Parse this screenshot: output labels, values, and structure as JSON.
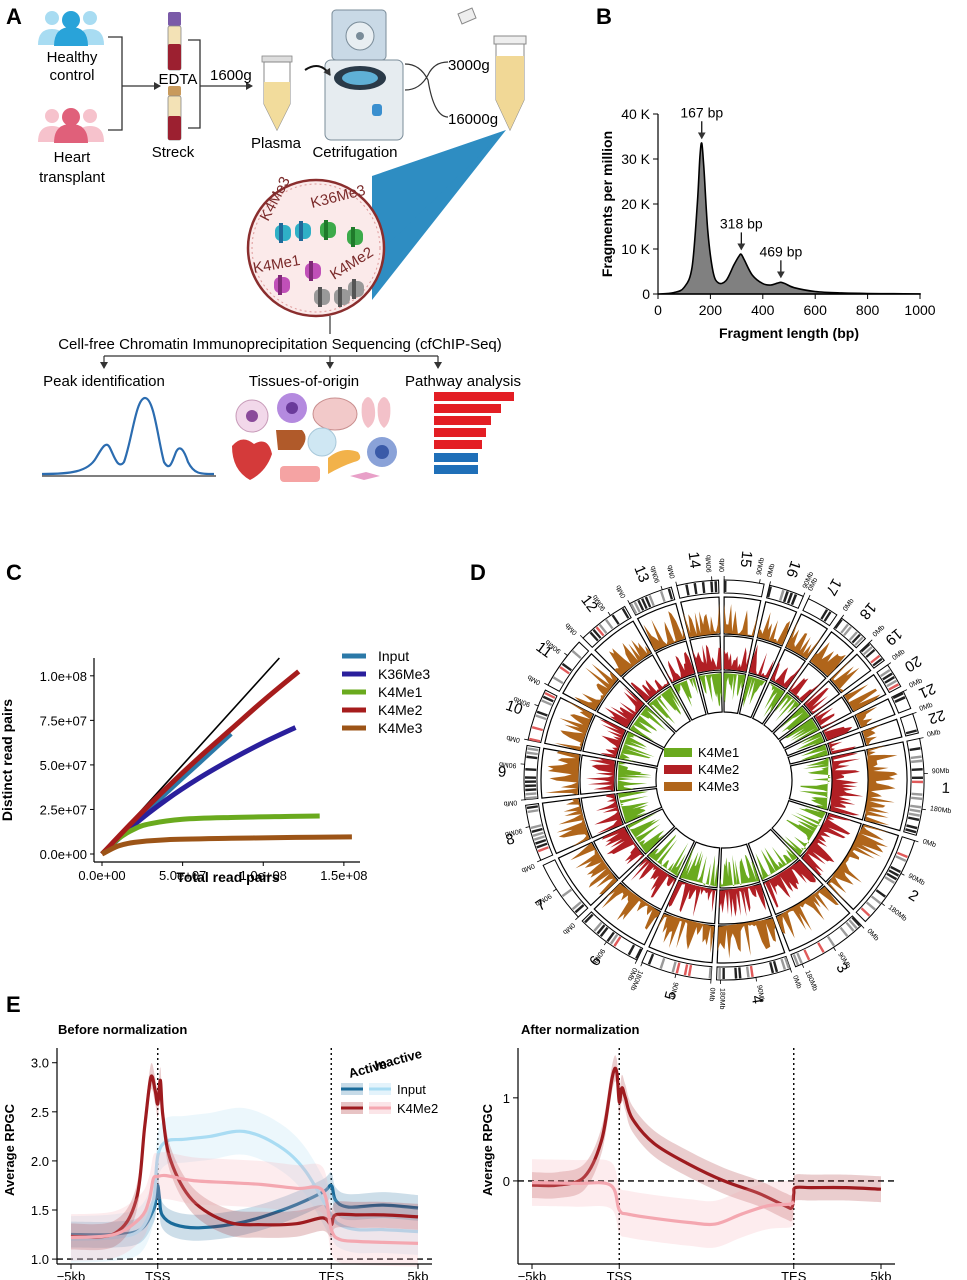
{
  "panels": {
    "A": "A",
    "B": "B",
    "C": "C",
    "D": "D",
    "E": "E"
  },
  "panel_a": {
    "healthy": [
      "Healthy",
      "control"
    ],
    "heart": [
      "Heart",
      "transplant"
    ],
    "edta": "EDTA",
    "streck": "Streck",
    "spin1": "1600g",
    "plasma": "Plasma",
    "centrifugation": "Cetrifugation",
    "spin2": "3000g",
    "spin3": "16000g",
    "marks": [
      "K4Me3",
      "K36Me3",
      "K4Me1",
      "K4Me2"
    ],
    "method": "Cell-free Chromatin Immunoprecipitation Sequencing (cfChIP-Seq)",
    "analyses": [
      "Peak identification",
      "Tissues-of-origin",
      "Pathway analysis"
    ],
    "colors": {
      "healthy": "#29a3d9",
      "heart": "#e0607a",
      "bar_red": "#e31e24",
      "bar_blue": "#1f6fb8",
      "peak_line": "#2b6cb0"
    }
  },
  "chart_data": [
    {
      "panel": "B",
      "type": "area",
      "xlabel": "Fragment length (bp)",
      "ylabel": "Fragments per million",
      "xlim": [
        0,
        1000
      ],
      "ylim": [
        0,
        40000
      ],
      "xticks": [
        "0",
        "200",
        "400",
        "600",
        "800",
        "1000"
      ],
      "yticks": [
        "0",
        "10 K",
        "20 K",
        "30 K",
        "40 K"
      ],
      "x": [
        0,
        60,
        100,
        130,
        150,
        160,
        167,
        175,
        190,
        210,
        230,
        260,
        290,
        310,
        318,
        330,
        360,
        400,
        430,
        455,
        469,
        485,
        520,
        600,
        700,
        800,
        900,
        1000
      ],
      "values": [
        0,
        300,
        1500,
        6000,
        20000,
        30500,
        33500,
        28000,
        14000,
        5000,
        2500,
        3000,
        6500,
        8500,
        8800,
        7500,
        4200,
        2300,
        2000,
        2400,
        2600,
        2300,
        1400,
        550,
        250,
        120,
        60,
        20
      ],
      "annotations": [
        "167 bp",
        "318 bp",
        "469 bp"
      ],
      "annotation_x": [
        167,
        318,
        469
      ],
      "annotation_y": [
        33500,
        8800,
        2600
      ],
      "fill": "#808080",
      "grid": false
    },
    {
      "panel": "C",
      "type": "line",
      "xlabel": "Total read pairs",
      "ylabel": "Distinct read pairs",
      "xlim": [
        0,
        160000000
      ],
      "ylim": [
        0,
        110000000
      ],
      "xticks": [
        "0.0e+00",
        "5.0e+07",
        "1.0e+08",
        "1.5e+08"
      ],
      "xtick_values": [
        0,
        50000000,
        100000000,
        150000000
      ],
      "yticks": [
        "0.0e+00",
        "2.5e+07",
        "5.0e+07",
        "7.5e+07",
        "1.0e+08"
      ],
      "ytick_values": [
        0,
        25000000,
        50000000,
        75000000,
        100000000
      ],
      "legend_position": "right",
      "series": [
        {
          "name": "Input",
          "color": "#2b79a8",
          "x": [
            0,
            20000000,
            40000000,
            60000000,
            80000000
          ],
          "values": [
            0,
            17500000,
            34500000,
            51000000,
            67500000
          ]
        },
        {
          "name": "K36Me3",
          "color": "#2a1f9c",
          "x": [
            0,
            20000000,
            40000000,
            60000000,
            80000000,
            100000000,
            120000000
          ],
          "values": [
            0,
            16500000,
            30500000,
            42500000,
            53000000,
            62500000,
            71000000
          ]
        },
        {
          "name": "K4Me1",
          "color": "#6aaa1e",
          "x": [
            0,
            10000000,
            20000000,
            30000000,
            50000000,
            80000000,
            110000000,
            135000000
          ],
          "values": [
            0,
            8500000,
            14000000,
            17000000,
            19500000,
            20500000,
            21000000,
            21300000
          ]
        },
        {
          "name": "K4Me2",
          "color": "#a61c1c",
          "x": [
            0,
            20000000,
            40000000,
            60000000,
            80000000,
            100000000,
            122000000
          ],
          "values": [
            0,
            19000000,
            37000000,
            54000000,
            70000000,
            86000000,
            102500000
          ]
        },
        {
          "name": "K4Me3",
          "color": "#9c5417",
          "x": [
            0,
            10000000,
            20000000,
            40000000,
            80000000,
            120000000,
            155000000
          ],
          "values": [
            0,
            4500000,
            6500000,
            8000000,
            8800000,
            9300000,
            9600000
          ]
        }
      ],
      "reference": {
        "x": [
          0,
          110000000
        ],
        "values": [
          0,
          110000000
        ],
        "color": "#000000"
      }
    },
    {
      "panel": "E-left",
      "type": "line",
      "title": "Before normalization",
      "ylabel": "Average RPGC",
      "xticks": [
        "−5kb",
        "TSS",
        "TES",
        "5kb"
      ],
      "tick_positions": [
        0,
        1,
        3,
        4
      ],
      "xlim": [
        0,
        4
      ],
      "ylim": [
        0.95,
        3.15
      ],
      "yticks": [
        "1.0",
        "1.5",
        "2.0",
        "2.5",
        "3.0"
      ],
      "ytick_values": [
        1.0,
        1.5,
        2.0,
        2.5,
        3.0
      ],
      "hline": 1.0,
      "legend_headers": [
        "Active",
        "Inactive"
      ],
      "legend_rows": [
        "Input",
        "K4Me2"
      ],
      "series": [
        {
          "name": "Input",
          "state": "Active",
          "color": "#1a6b9a",
          "x": [
            0,
            0.5,
            0.8,
            0.95,
            0.98,
            1.0,
            1.02,
            1.05,
            1.2,
            1.5,
            2.0,
            2.5,
            2.9,
            3.0,
            3.05,
            3.2,
            3.6,
            4.0
          ],
          "values": [
            1.25,
            1.25,
            1.3,
            1.5,
            1.62,
            1.75,
            1.62,
            1.45,
            1.35,
            1.32,
            1.38,
            1.52,
            1.68,
            1.75,
            1.6,
            1.53,
            1.55,
            1.52
          ]
        },
        {
          "name": "Input",
          "state": "Inactive",
          "color": "#a9dcf3",
          "x": [
            0,
            0.5,
            0.8,
            0.95,
            1.0,
            1.1,
            1.3,
            1.6,
            2.0,
            2.4,
            2.7,
            3.0,
            3.1,
            3.3,
            3.6,
            4.0
          ],
          "values": [
            1.2,
            1.22,
            1.3,
            1.6,
            2.05,
            2.2,
            2.22,
            2.25,
            2.3,
            2.15,
            1.9,
            1.45,
            1.35,
            1.3,
            1.3,
            1.28
          ]
        },
        {
          "name": "K4Me2",
          "state": "Active",
          "color": "#9e1b1f",
          "x": [
            0,
            0.5,
            0.75,
            0.85,
            0.92,
            0.97,
            1.0,
            1.03,
            1.06,
            1.15,
            1.4,
            1.8,
            2.2,
            2.6,
            2.9,
            3.0,
            3.05,
            3.3,
            3.6,
            4.0
          ],
          "values": [
            1.23,
            1.26,
            1.6,
            2.35,
            2.85,
            2.72,
            2.58,
            2.82,
            2.45,
            2.0,
            1.6,
            1.38,
            1.35,
            1.36,
            1.42,
            1.35,
            1.45,
            1.45,
            1.45,
            1.43
          ]
        },
        {
          "name": "K4Me2",
          "state": "Inactive",
          "color": "#f4a7b0",
          "x": [
            0,
            0.5,
            0.8,
            0.9,
            0.95,
            1.0,
            1.1,
            1.4,
            1.8,
            2.2,
            2.6,
            2.9,
            3.0,
            3.1,
            3.3,
            3.6,
            4.0
          ],
          "values": [
            1.22,
            1.25,
            1.42,
            1.6,
            1.82,
            1.84,
            1.85,
            1.8,
            1.78,
            1.76,
            1.72,
            1.7,
            1.3,
            1.2,
            1.18,
            1.17,
            1.16
          ]
        }
      ]
    },
    {
      "panel": "E-right",
      "type": "line",
      "title": "After normalization",
      "ylabel": "Average RPGC",
      "xticks": [
        "−5kb",
        "TSS",
        "TES",
        "5kb"
      ],
      "tick_positions": [
        0,
        1,
        3,
        4
      ],
      "xlim": [
        0,
        4
      ],
      "ylim": [
        -1.0,
        1.6
      ],
      "yticks": [
        "0",
        "1"
      ],
      "ytick_values": [
        0,
        1
      ],
      "hline": 0,
      "series": [
        {
          "name": "K4Me2",
          "state": "Active",
          "color": "#9e1b1f",
          "x": [
            0,
            0.3,
            0.6,
            0.8,
            0.92,
            0.97,
            1.0,
            1.03,
            1.07,
            1.15,
            1.4,
            1.8,
            2.2,
            2.6,
            2.9,
            2.98,
            3.0,
            3.02,
            3.2,
            3.6,
            4.0
          ],
          "values": [
            -0.05,
            -0.05,
            0.05,
            0.5,
            1.25,
            1.32,
            0.95,
            1.12,
            1.0,
            0.75,
            0.45,
            0.2,
            0.0,
            -0.15,
            -0.3,
            -0.32,
            -0.15,
            -0.08,
            -0.08,
            -0.08,
            -0.1
          ]
        },
        {
          "name": "K4Me2",
          "state": "Inactive",
          "color": "#f4a7b0",
          "x": [
            0,
            0.5,
            0.9,
            1.0,
            1.1,
            1.4,
            1.8,
            2.1,
            2.4,
            2.7,
            2.95,
            3.0
          ],
          "values": [
            -0.02,
            -0.03,
            -0.05,
            -0.35,
            -0.4,
            -0.45,
            -0.5,
            -0.52,
            -0.4,
            -0.3,
            -0.28,
            -0.25
          ]
        }
      ]
    }
  ],
  "panel_d": {
    "legend": [
      "K4Me1",
      "K4Me2",
      "K4Me3"
    ],
    "colors": {
      "K4Me1": "#6aaa1e",
      "K4Me2": "#b11f24",
      "K4Me3": "#b0651a"
    },
    "chromosomes": [
      "1",
      "2",
      "3",
      "4",
      "5",
      "6",
      "7",
      "8",
      "9",
      "10",
      "11",
      "12",
      "13",
      "14",
      "15",
      "16",
      "17",
      "18",
      "19",
      "20",
      "21",
      "22"
    ],
    "sizes_mb": [
      248,
      242,
      198,
      190,
      181,
      171,
      159,
      145,
      138,
      134,
      135,
      133,
      114,
      107,
      102,
      90,
      83,
      80,
      59,
      64,
      47,
      51
    ],
    "tick_labels": [
      "0Mb",
      "90Mb",
      "180Mb"
    ]
  }
}
